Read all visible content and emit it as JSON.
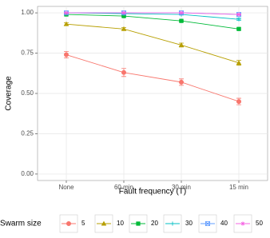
{
  "chart_data": {
    "type": "line",
    "x_label": "Fault frequency (T)",
    "y_label": "Coverage",
    "categories": [
      "None",
      "60 min",
      "30 min",
      "15 min"
    ],
    "ylim": [
      -0.04,
      1.04
    ],
    "yticks": [
      {
        "value": 0,
        "label": "0.00"
      },
      {
        "value": 0.25,
        "label": "0.25"
      },
      {
        "value": 0.5,
        "label": "0.50"
      },
      {
        "value": 0.75,
        "label": "0.75"
      },
      {
        "value": 1,
        "label": "1.00"
      }
    ],
    "grid": true,
    "legend_title": "Swarm size",
    "legend_position": "bottom",
    "series": [
      {
        "name": "5",
        "color": "#F8766D",
        "shape": "circle",
        "values": [
          0.74,
          0.63,
          0.57,
          0.45
        ],
        "errors": [
          0.02,
          0.025,
          0.02,
          0.02
        ]
      },
      {
        "name": "10",
        "color": "#B79F00",
        "shape": "triangle",
        "values": [
          0.93,
          0.9,
          0.8,
          0.69
        ],
        "errors": [
          0.008,
          0.008,
          0.012,
          0.015
        ]
      },
      {
        "name": "20",
        "color": "#00BA38",
        "shape": "square",
        "values": [
          0.99,
          0.98,
          0.95,
          0.9
        ],
        "errors": [
          0.005,
          0.005,
          0.005,
          0.006
        ]
      },
      {
        "name": "30",
        "color": "#00BFC4",
        "shape": "plus",
        "values": [
          1,
          0.995,
          0.99,
          0.96
        ],
        "errors": [
          0.003,
          0.003,
          0.004,
          0.006
        ]
      },
      {
        "name": "40",
        "color": "#619CFF",
        "shape": "boxcross",
        "values": [
          1,
          1,
          1,
          0.99
        ],
        "errors": [
          0.002,
          0.002,
          0.002,
          0.004
        ]
      },
      {
        "name": "50",
        "color": "#F564E3",
        "shape": "star",
        "values": [
          1,
          1,
          1,
          0.99
        ],
        "errors": [
          0.002,
          0.002,
          0.002,
          0.004
        ]
      }
    ]
  }
}
